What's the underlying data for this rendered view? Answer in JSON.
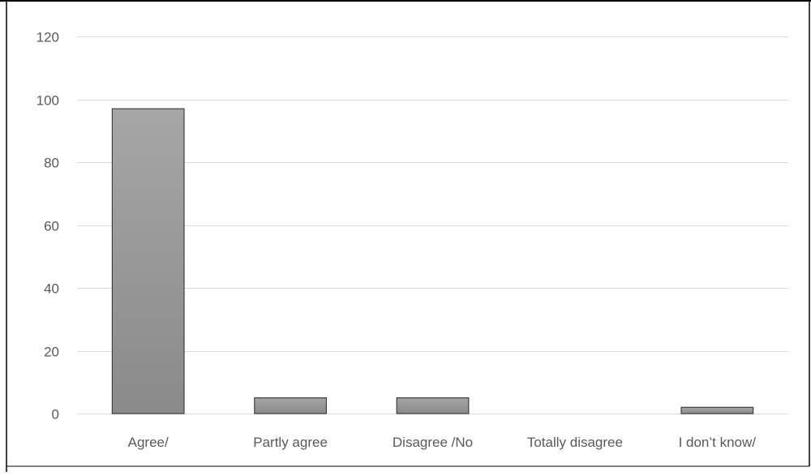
{
  "chart_data": {
    "type": "bar",
    "categories": [
      "Agree/",
      "Partly agree",
      "Disagree /No",
      "Totally disagree",
      "I don’t know/"
    ],
    "values": [
      97,
      5,
      5,
      0,
      2
    ],
    "yticks": [
      0,
      20,
      40,
      60,
      80,
      100,
      120
    ],
    "ylim": [
      0,
      120
    ],
    "grid": true,
    "legend": "none"
  },
  "colors": {
    "bar_fill_top": "#a6a6a6",
    "bar_fill_bottom": "#8a8a8a",
    "bar_stroke": "#404040",
    "grid": "#d9d9d9",
    "axis_text": "#595959",
    "frame": "#000000"
  }
}
